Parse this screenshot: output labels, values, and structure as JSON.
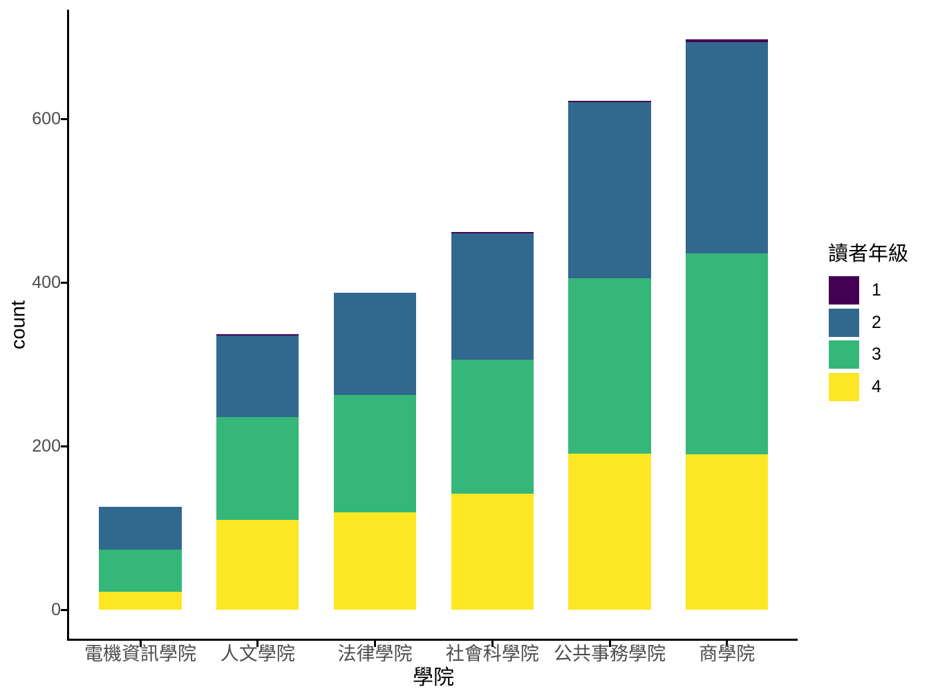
{
  "chart_data": {
    "type": "bar",
    "stacked": true,
    "orientation": "vertical",
    "xlabel": "學院",
    "ylabel": "count",
    "categories": [
      "電機資訊學院",
      "人文學院",
      "法律學院",
      "社會科學院",
      "公共事務學院",
      "商學院"
    ],
    "series": [
      {
        "name": "1",
        "color": "#440154",
        "values": [
          0,
          2,
          0,
          2,
          2,
          3
        ]
      },
      {
        "name": "2",
        "color": "#31688E",
        "values": [
          52,
          99,
          125,
          154,
          215,
          258
        ]
      },
      {
        "name": "3",
        "color": "#35B779",
        "values": [
          52,
          126,
          144,
          164,
          214,
          246
        ]
      },
      {
        "name": "4",
        "color": "#FDE725",
        "values": [
          22,
          110,
          119,
          142,
          191,
          190
        ]
      }
    ],
    "stack_order_bottom_to_top": [
      "4",
      "3",
      "2",
      "1"
    ],
    "totals": [
      126,
      337,
      388,
      462,
      622,
      697
    ],
    "y_ticks": [
      0,
      200,
      400,
      600
    ],
    "ylim": [
      0,
      700
    ],
    "grid": false,
    "legend_title": "讀者年級",
    "legend_position": "right",
    "axis_color": "#000000",
    "tick_label_color": "#4d4d4d",
    "background_color": "#ffffff"
  }
}
